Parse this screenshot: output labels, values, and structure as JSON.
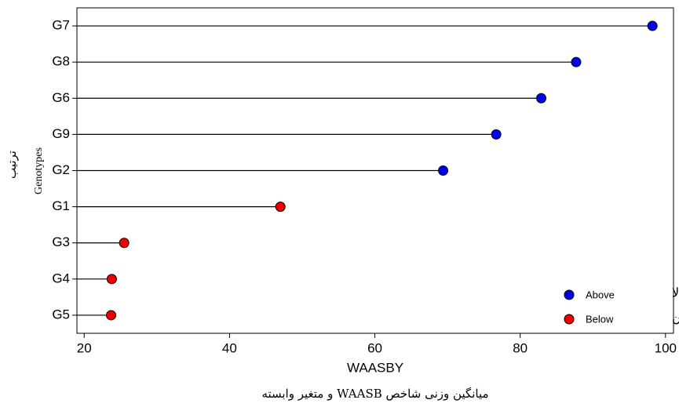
{
  "chart_data": {
    "type": "lollipop",
    "x_label": "WAASBY",
    "y_label": "Genotypes",
    "y_label_fa": "ترتیب",
    "x_label_fa": "میانگین وزنی شاخص WAASB و متغیر وابسته",
    "categories": [
      "G7",
      "G8",
      "G6",
      "G9",
      "G2",
      "G1",
      "G3",
      "G4",
      "G5"
    ],
    "series": [
      {
        "name": "Above",
        "name_fa": "بالا",
        "color": "#0000ee",
        "values": [
          98.2,
          87.7,
          82.9,
          76.7,
          69.4,
          null,
          null,
          null,
          null
        ]
      },
      {
        "name": "Below",
        "name_fa": "پایین",
        "color": "#ee0000",
        "values": [
          null,
          null,
          null,
          null,
          null,
          47.0,
          25.5,
          23.8,
          23.7
        ]
      }
    ],
    "xlim": [
      19.0,
      101.1
    ],
    "xticks": [
      20,
      40,
      60,
      80,
      100
    ],
    "legend": "bottom-right"
  }
}
